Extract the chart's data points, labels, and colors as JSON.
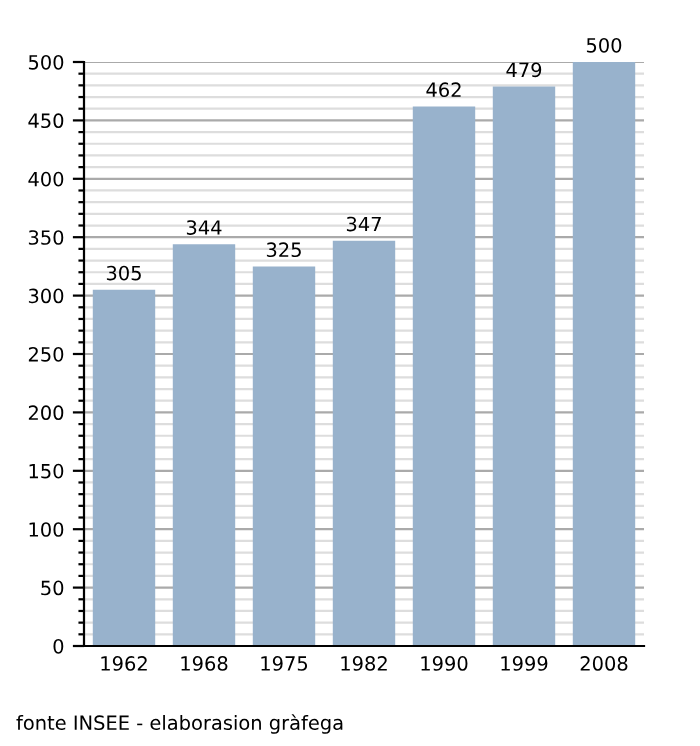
{
  "chart_data": {
    "type": "bar",
    "categories": [
      "1962",
      "1968",
      "1975",
      "1982",
      "1990",
      "1999",
      "2008"
    ],
    "values": [
      305,
      344,
      325,
      347,
      462,
      479,
      500
    ],
    "color": "#98b2cc",
    "data_labels": true,
    "ylim": [
      0,
      500
    ],
    "yticks": [
      0,
      {
        "value": 10,
        "label": null
      },
      {
        "value": 20,
        "label": null
      },
      {
        "value": 30,
        "label": null
      },
      {
        "value": 40,
        "label": null
      },
      50,
      {
        "value": 60,
        "label": null
      },
      {
        "value": 70,
        "label": null
      },
      {
        "value": 80,
        "label": null
      },
      {
        "value": 90,
        "label": null
      },
      100,
      {
        "value": 110,
        "label": null
      },
      {
        "value": 120,
        "label": null
      },
      {
        "value": 130,
        "label": null
      },
      {
        "value": 140,
        "label": null
      },
      150,
      {
        "value": 160,
        "label": null
      },
      {
        "value": 170,
        "label": null
      },
      {
        "value": 180,
        "label": null
      },
      {
        "value": 190,
        "label": null
      },
      200,
      {
        "value": 210,
        "label": null
      },
      {
        "value": 220,
        "label": null
      },
      {
        "value": 230,
        "label": null
      },
      {
        "value": 240,
        "label": null
      },
      250,
      {
        "value": 260,
        "label": null
      },
      {
        "value": 270,
        "label": null
      },
      {
        "value": 280,
        "label": null
      },
      {
        "value": 290,
        "label": null
      },
      300,
      {
        "value": 310,
        "label": null
      },
      {
        "value": 320,
        "label": null
      },
      {
        "value": 330,
        "label": null
      },
      {
        "value": 340,
        "label": null
      },
      350,
      {
        "value": 360,
        "label": null
      },
      {
        "value": 370,
        "label": null
      },
      {
        "value": 380,
        "label": null
      },
      {
        "value": 390,
        "label": null
      },
      400,
      {
        "value": 410,
        "label": null
      },
      {
        "value": 420,
        "label": null
      },
      {
        "value": 430,
        "label": null
      },
      {
        "value": 440,
        "label": null
      },
      450,
      {
        "value": 460,
        "label": null
      },
      {
        "value": 470,
        "label": null
      },
      {
        "value": 480,
        "label": null
      },
      {
        "value": 490,
        "label": null
      },
      500
    ],
    "grid": "y",
    "annotations": [
      "fonte INSEE - elaborasion gràfega"
    ]
  }
}
